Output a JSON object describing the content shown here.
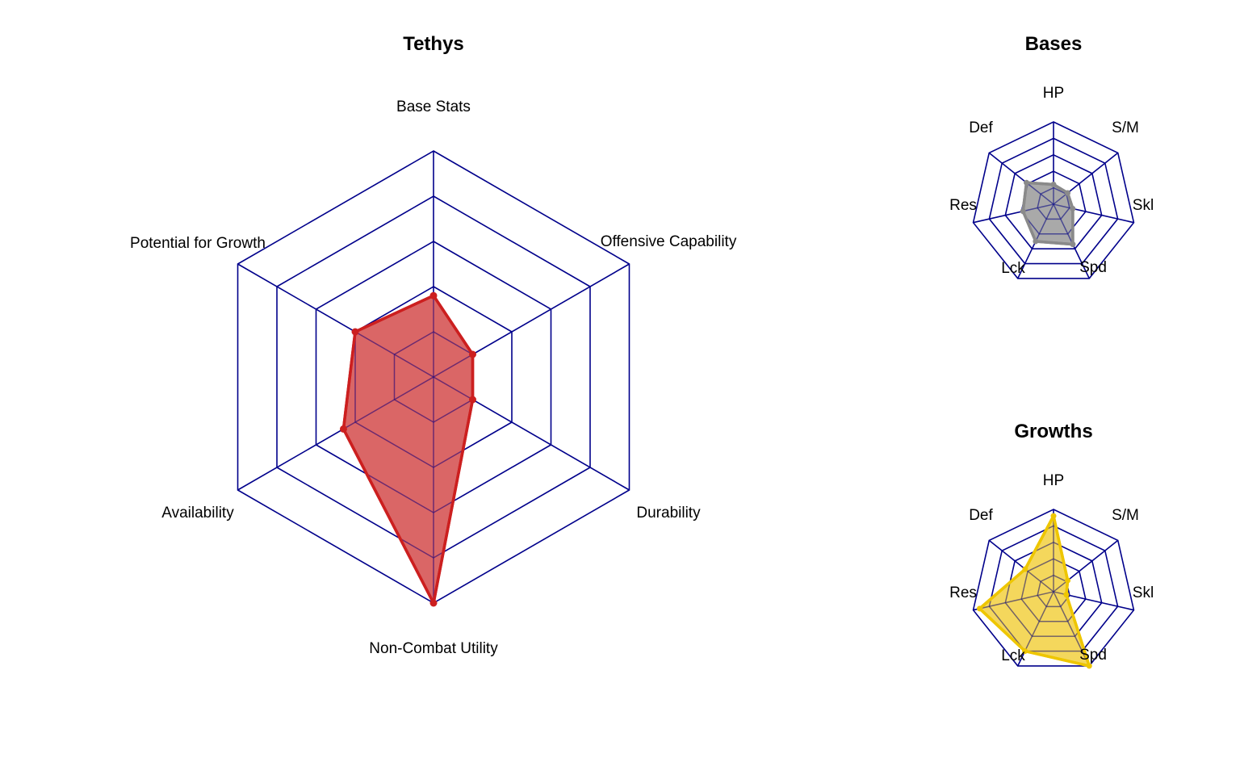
{
  "colors": {
    "grid": "#00008b",
    "tethys_stroke": "#cc1f1f",
    "tethys_fill": "#d65555",
    "bases_stroke": "#8a8a8a",
    "bases_fill": "#9a9a9a",
    "growths_stroke": "#eec600",
    "growths_fill": "#f2d040",
    "inner_web": "#666666"
  },
  "chart_data": [
    {
      "type": "radar",
      "title": "Tethys",
      "axes": [
        "Base Stats",
        "Offensive Capability",
        "Durability",
        "Non-Combat Utility",
        "Availability",
        "Potential for Growth"
      ],
      "grid_levels": 5,
      "range": [
        0,
        5
      ],
      "values": [
        1.8,
        1.0,
        1.0,
        5.0,
        2.3,
        2.0
      ],
      "series": [
        {
          "values": [
            1.8,
            1.0,
            1.0,
            5.0,
            2.3,
            2.0
          ]
        }
      ]
    },
    {
      "type": "radar",
      "title": "Bases",
      "axes": [
        "HP",
        "S/M",
        "Skl",
        "Spd",
        "Lck",
        "Res",
        "Def"
      ],
      "grid_levels": 5,
      "range": [
        0,
        5
      ],
      "values": [
        1.2,
        1.1,
        1.2,
        2.7,
        2.5,
        1.9,
        2.1
      ],
      "series": [
        {
          "values": [
            1.2,
            1.1,
            1.2,
            2.7,
            2.5,
            1.9,
            2.1
          ]
        }
      ]
    },
    {
      "type": "radar",
      "title": "Growths",
      "axes": [
        "HP",
        "S/M",
        "Skl",
        "Spd",
        "Lck",
        "Res",
        "Def"
      ],
      "grid_levels": 5,
      "range": [
        0,
        5
      ],
      "values": [
        4.6,
        1.1,
        0.8,
        5.0,
        4.0,
        4.6,
        2.2
      ],
      "series": [
        {
          "values": [
            4.6,
            1.1,
            0.8,
            5.0,
            4.0,
            4.6,
            2.2
          ]
        }
      ]
    }
  ]
}
